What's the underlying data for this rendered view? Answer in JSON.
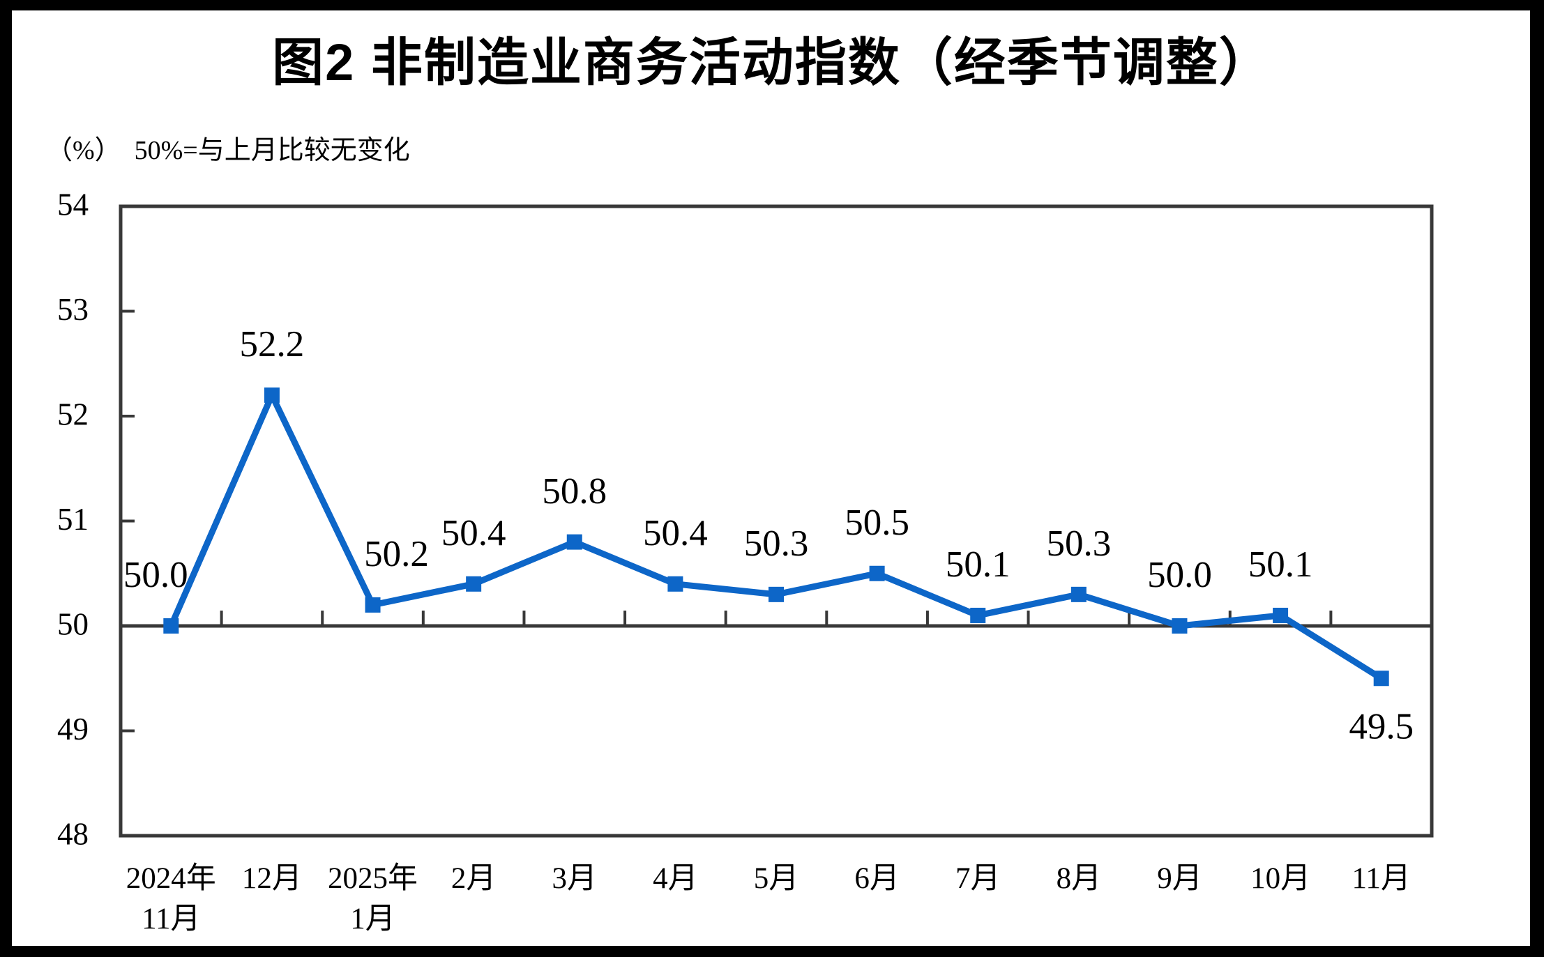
{
  "chart_data": {
    "type": "line",
    "title": "图2 非制造业商务活动指数（经季节调整）",
    "subtitle": "（%）  50%=与上月比较无变化",
    "categories": [
      "2024年\n11月",
      "12月",
      "2025年\n1月",
      "2月",
      "3月",
      "4月",
      "5月",
      "6月",
      "7月",
      "8月",
      "9月",
      "10月",
      "11月"
    ],
    "values": [
      50.0,
      52.2,
      50.2,
      50.4,
      50.8,
      50.4,
      50.3,
      50.5,
      50.1,
      50.3,
      50.0,
      50.1,
      49.5
    ],
    "data_labels": [
      "50.0",
      "52.2",
      "50.2",
      "50.4",
      "50.8",
      "50.4",
      "50.3",
      "50.5",
      "50.1",
      "50.3",
      "50.0",
      "50.1",
      "49.5"
    ],
    "xlabel": "",
    "ylabel": "（%）",
    "ylim": [
      48,
      54
    ],
    "yticks": [
      "48",
      "49",
      "50",
      "51",
      "52",
      "53",
      "54"
    ],
    "reference_line": 50,
    "grid": false,
    "legend": "none",
    "marker": "square",
    "series_color": "#0D66C8",
    "axis_color": "#383838",
    "background_color": "#FFFFFF",
    "frame_color": "#000000"
  }
}
